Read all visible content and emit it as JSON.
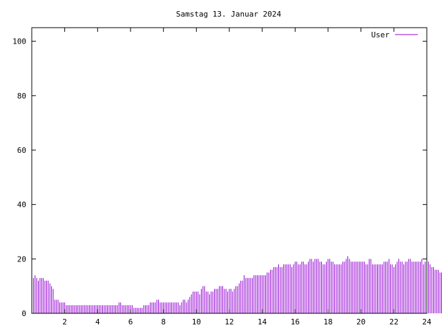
{
  "chart_data": {
    "type": "bar",
    "title": "Samstag 13. Januar 2024",
    "xlabel": "",
    "ylabel": "",
    "xlim": [
      0,
      24
    ],
    "ylim": [
      0,
      105
    ],
    "x_ticks": [
      "2",
      "4",
      "6",
      "8",
      "10",
      "12",
      "14",
      "16",
      "18",
      "20",
      "22",
      "24"
    ],
    "y_ticks": [
      "0",
      "20",
      "40",
      "60",
      "80",
      "100"
    ],
    "grid": false,
    "legend_position": "top-right",
    "series": [
      {
        "name": "User",
        "color": "#9400d3",
        "step_hours": 0.1,
        "values": [
          15,
          13,
          14,
          13,
          12,
          13,
          13,
          13,
          12,
          12,
          12,
          11,
          10,
          9,
          5,
          5,
          5,
          4,
          4,
          4,
          4,
          3,
          3,
          3,
          3,
          3,
          3,
          3,
          3,
          3,
          3,
          3,
          3,
          3,
          3,
          3,
          3,
          3,
          3,
          3,
          3,
          3,
          3,
          3,
          3,
          3,
          3,
          3,
          3,
          3,
          3,
          3,
          3,
          4,
          4,
          3,
          3,
          3,
          3,
          3,
          3,
          3,
          2,
          2,
          2,
          2,
          2,
          2,
          3,
          3,
          3,
          3,
          4,
          4,
          4,
          4,
          5,
          5,
          4,
          4,
          4,
          4,
          4,
          4,
          4,
          4,
          4,
          4,
          4,
          4,
          3,
          4,
          5,
          5,
          4,
          5,
          6,
          7,
          8,
          8,
          8,
          8,
          7,
          9,
          10,
          10,
          8,
          8,
          7,
          8,
          8,
          9,
          9,
          9,
          10,
          10,
          10,
          9,
          9,
          8,
          9,
          9,
          8,
          9,
          10,
          10,
          11,
          12,
          12,
          14,
          13,
          13,
          13,
          13,
          13,
          14,
          14,
          14,
          14,
          14,
          14,
          14,
          14,
          15,
          15,
          16,
          16,
          17,
          17,
          17,
          18,
          17,
          17,
          18,
          18,
          18,
          18,
          18,
          17,
          18,
          19,
          19,
          18,
          18,
          19,
          19,
          18,
          18,
          19,
          20,
          20,
          19,
          20,
          20,
          20,
          19,
          19,
          18,
          18,
          19,
          20,
          20,
          19,
          19,
          18,
          18,
          18,
          18,
          18,
          19,
          19,
          20,
          21,
          20,
          19,
          19,
          19,
          19,
          19,
          19,
          19,
          19,
          19,
          18,
          18,
          20,
          20,
          18,
          18,
          18,
          18,
          18,
          18,
          18,
          19,
          19,
          19,
          20,
          18,
          18,
          17,
          18,
          19,
          20,
          19,
          19,
          18,
          19,
          19,
          20,
          20,
          19,
          19,
          19,
          19,
          19,
          19,
          20,
          18,
          19,
          20,
          19,
          18,
          17,
          17,
          16,
          16,
          16,
          15,
          15
        ]
      }
    ]
  }
}
